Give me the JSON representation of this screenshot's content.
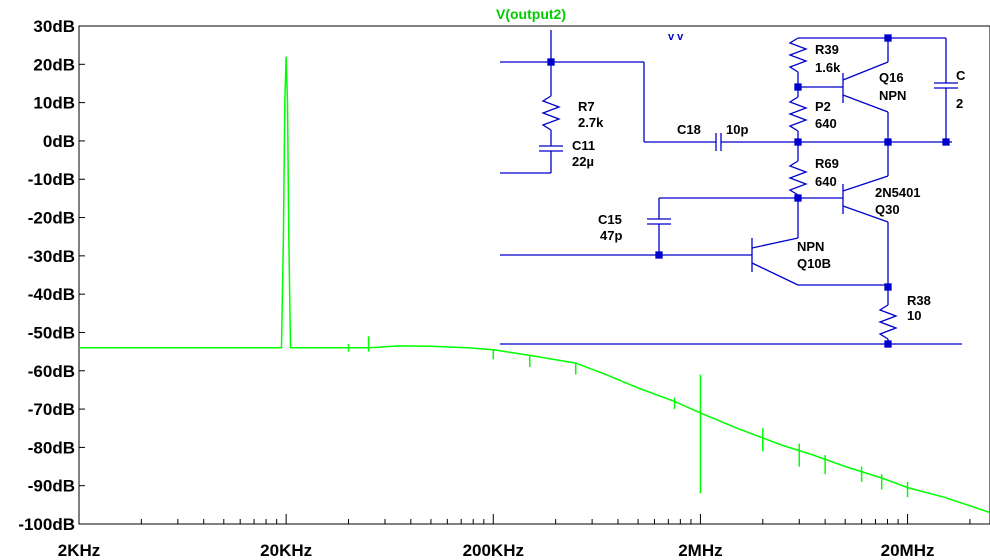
{
  "trace_title": "V(output2)",
  "colors": {
    "trace": "#00ff00",
    "axis_text": "#000000",
    "schematic": "#0000cc",
    "frame": "#000000",
    "background": "#ffffff"
  },
  "chart_data": {
    "type": "line",
    "title": "V(output2)",
    "xscale": "log",
    "xlim": [
      2000,
      50000000
    ],
    "ylim": [
      -100,
      30
    ],
    "grid": false,
    "y_ticks": [
      {
        "value": 30,
        "label": "30dB"
      },
      {
        "value": 20,
        "label": "20dB"
      },
      {
        "value": 10,
        "label": "10dB"
      },
      {
        "value": 0,
        "label": "0dB"
      },
      {
        "value": -10,
        "label": "-10dB"
      },
      {
        "value": -20,
        "label": "-20dB"
      },
      {
        "value": -30,
        "label": "-30dB"
      },
      {
        "value": -40,
        "label": "-40dB"
      },
      {
        "value": -50,
        "label": "-50dB"
      },
      {
        "value": -60,
        "label": "-60dB"
      },
      {
        "value": -70,
        "label": "-70dB"
      },
      {
        "value": -80,
        "label": "-80dB"
      },
      {
        "value": -90,
        "label": "-90dB"
      },
      {
        "value": -100,
        "label": "-100dB"
      }
    ],
    "x_ticks": [
      {
        "value": 2000,
        "label": "2KHz"
      },
      {
        "value": 20000,
        "label": "20KHz"
      },
      {
        "value": 200000,
        "label": "200KHz"
      },
      {
        "value": 2000000,
        "label": "2MHz"
      },
      {
        "value": 20000000,
        "label": "20MHz"
      }
    ],
    "series": [
      {
        "color": "#00ff00",
        "x": [
          2000,
          19000,
          19400,
          19700,
          20000,
          20300,
          20600,
          21000,
          30000,
          50000,
          70000,
          100000,
          150000,
          200000,
          300000,
          500000,
          700000,
          1000000,
          1500000,
          2000000,
          3000000,
          5000000,
          7000000,
          10000000,
          15000000,
          20000000,
          30000000,
          50000000
        ],
        "y": [
          -54,
          -54,
          -25,
          10,
          22,
          10,
          -25,
          -54,
          -54,
          -54,
          -53.5,
          -53.6,
          -54,
          -54.5,
          -56,
          -58,
          -61,
          -64.5,
          -68,
          -71,
          -75,
          -79.5,
          -82,
          -85,
          -88,
          -90.5,
          -93,
          -97
        ]
      }
    ],
    "spikes": [
      {
        "x": 40000,
        "top": -53,
        "bottom": -55
      },
      {
        "x": 50000,
        "top": -51,
        "bottom": -55
      },
      {
        "x": 200000,
        "top": -54.5,
        "bottom": -57
      },
      {
        "x": 300000,
        "top": -56,
        "bottom": -59
      },
      {
        "x": 500000,
        "top": -58,
        "bottom": -61
      },
      {
        "x": 1500000,
        "top": -67,
        "bottom": -70
      },
      {
        "x": 2000000,
        "top": -61,
        "bottom": -92
      },
      {
        "x": 4000000,
        "top": -75,
        "bottom": -81
      },
      {
        "x": 6000000,
        "top": -79,
        "bottom": -85
      },
      {
        "x": 8000000,
        "top": -82,
        "bottom": -87
      },
      {
        "x": 12000000,
        "top": -85,
        "bottom": -89
      },
      {
        "x": 15000000,
        "top": -87,
        "bottom": -91
      },
      {
        "x": 20000000,
        "top": -89,
        "bottom": -93
      }
    ]
  },
  "schematic": {
    "labels": {
      "r7_name": "R7",
      "r7_value": "2.7k",
      "c11_name": "C11",
      "c11_value": "22µ",
      "c18_name": "C18",
      "c18_value": "10p",
      "r39_name": "R39",
      "r39_value": "1.6k",
      "q16_name": "Q16",
      "q16_type": "NPN",
      "p2_name": "P2",
      "p2_value": "640",
      "r69_name": "R69",
      "r69_value": "640",
      "q30_part": "2N5401",
      "q30_name": "Q30",
      "c15_name": "C15",
      "c15_value": "47p",
      "q10b_type": "NPN",
      "q10b_name": "Q10B",
      "r38_name": "R38",
      "r38_value": "10",
      "cut_right_name": "C",
      "cut_right_value": "2"
    }
  }
}
